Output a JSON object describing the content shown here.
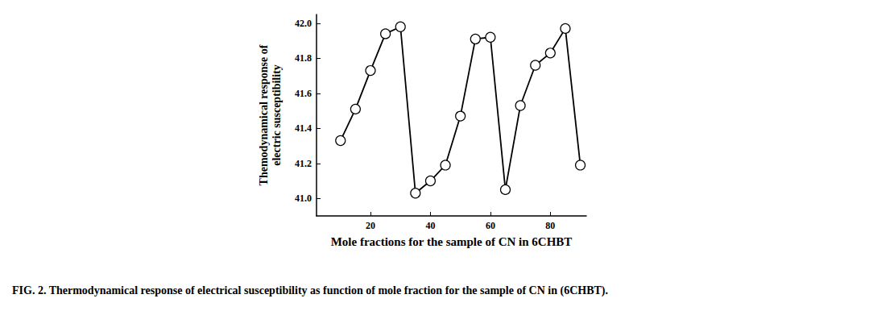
{
  "chart_data": {
    "type": "line",
    "title": "FIG. 2. Thermodynamical response of electrical susceptibility as function of mole fraction for the sample of CN in (6CHBT).",
    "x_label": "Mole fractions for the sample of CN in 6CHBT",
    "y_label": "Themodynamical response of\nelectric susceptibility",
    "x": [
      10,
      15,
      20,
      25,
      30,
      35,
      40,
      45,
      50,
      55,
      60,
      65,
      70,
      75,
      80,
      85,
      90
    ],
    "values": [
      41.33,
      41.51,
      41.73,
      41.94,
      41.98,
      41.03,
      41.1,
      41.19,
      41.47,
      41.91,
      41.92,
      41.05,
      41.53,
      41.76,
      41.83,
      41.97,
      41.19
    ],
    "color": "#000000",
    "marker": "circle",
    "line_style": "solid",
    "xlim": [
      2,
      92
    ],
    "xticks": [
      20,
      40,
      60,
      80
    ],
    "ylim": [
      40.9,
      42.05
    ],
    "yticks": [
      {
        "value": 41,
        "label": "41.0"
      },
      41.2,
      41.4,
      41.6,
      41.8,
      {
        "value": 42,
        "label": "42.0"
      }
    ],
    "grid": false
  }
}
